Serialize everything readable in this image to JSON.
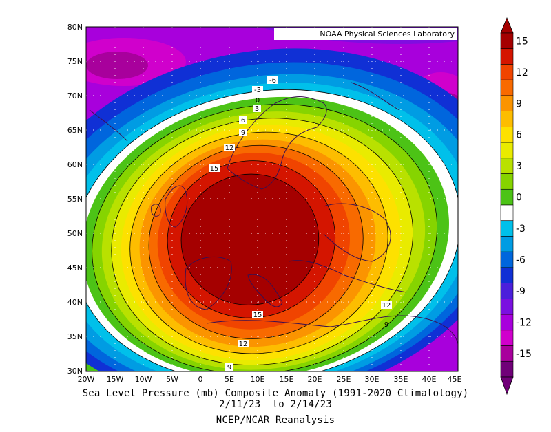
{
  "title_line1": "Sea Level Pressure (mb) Composite Anomaly (1991-2020 Climatology)",
  "title_line2": "2/11/23  to 2/14/23",
  "source": "NCEP/NCAR Reanalysis",
  "credit": "NOAA Physical Sciences Laboratory",
  "lat_labels": [
    "80N",
    "75N",
    "70N",
    "65N",
    "60N",
    "55N",
    "50N",
    "45N",
    "40N",
    "35N",
    "30N"
  ],
  "lon_labels": [
    "20W",
    "15W",
    "10W",
    "5W",
    "0",
    "5E",
    "10E",
    "15E",
    "20E",
    "25E",
    "30E",
    "35E",
    "40E",
    "45E"
  ],
  "contour_labels": [
    "-6",
    "-3",
    "0",
    "3",
    "6",
    "9",
    "12",
    "15",
    "15",
    "12",
    "9",
    "12",
    "9"
  ],
  "colorbar": {
    "labels": [
      "15",
      "12",
      "9",
      "6",
      "3",
      "0",
      "-3",
      "-6",
      "-9",
      "-12",
      "-15"
    ],
    "colors": [
      "#a50000",
      "#d41500",
      "#f04400",
      "#f86a00",
      "#fb9400",
      "#fdbd00",
      "#fde100",
      "#e9eb00",
      "#b9e100",
      "#86d400",
      "#4cc316",
      "#ffffff",
      "#00c0ea",
      "#009ce3",
      "#0066dd",
      "#1030d5",
      "#4b1fdb",
      "#7a10e0",
      "#a800dc",
      "#d000cc",
      "#a8009c",
      "#700078"
    ]
  }
}
